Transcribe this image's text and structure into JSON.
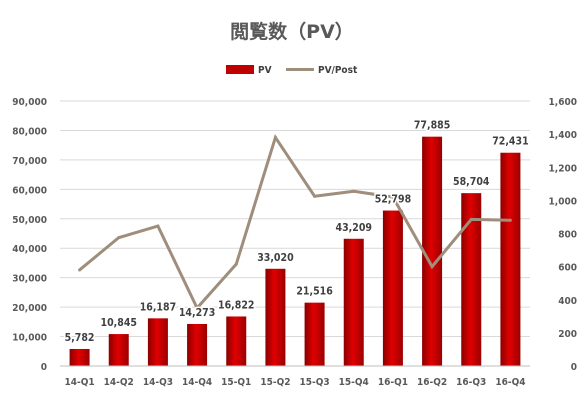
{
  "chart_data": {
    "type": "bar",
    "title": "閲覧数（PV）",
    "categories": [
      "14-Q1",
      "14-Q2",
      "14-Q3",
      "14-Q4",
      "15-Q1",
      "15-Q2",
      "15-Q3",
      "15-Q4",
      "16-Q1",
      "16-Q2",
      "16-Q3",
      "16-Q4"
    ],
    "series": [
      {
        "name": "PV",
        "type": "bar",
        "axis": "left",
        "color": "#c00000",
        "values": [
          5782,
          10845,
          16187,
          14273,
          16822,
          33020,
          21516,
          43209,
          52798,
          77885,
          58704,
          72431
        ],
        "labels": [
          "5,782",
          "10,845",
          "16,187",
          "14,273",
          "16,822",
          "33,020",
          "21,516",
          "43,209",
          "52,798",
          "77,885",
          "58,704",
          "72,431"
        ]
      },
      {
        "name": "PV/Post",
        "type": "line",
        "axis": "right",
        "color": "#9e8e7b",
        "values": [
          580,
          775,
          845,
          350,
          615,
          1380,
          1025,
          1055,
          1020,
          600,
          885,
          880
        ]
      }
    ],
    "yaxis_left": {
      "range": [
        0,
        90000
      ],
      "ticks": [
        "0",
        "10,000",
        "20,000",
        "30,000",
        "40,000",
        "50,000",
        "60,000",
        "70,000",
        "80,000",
        "90,000"
      ]
    },
    "yaxis_right": {
      "range": [
        0,
        1600
      ],
      "ticks": [
        "0",
        "200",
        "400",
        "600",
        "800",
        "1,000",
        "1,200",
        "1,400",
        "1,600"
      ]
    },
    "grid": true,
    "legend_position": "top-center"
  }
}
